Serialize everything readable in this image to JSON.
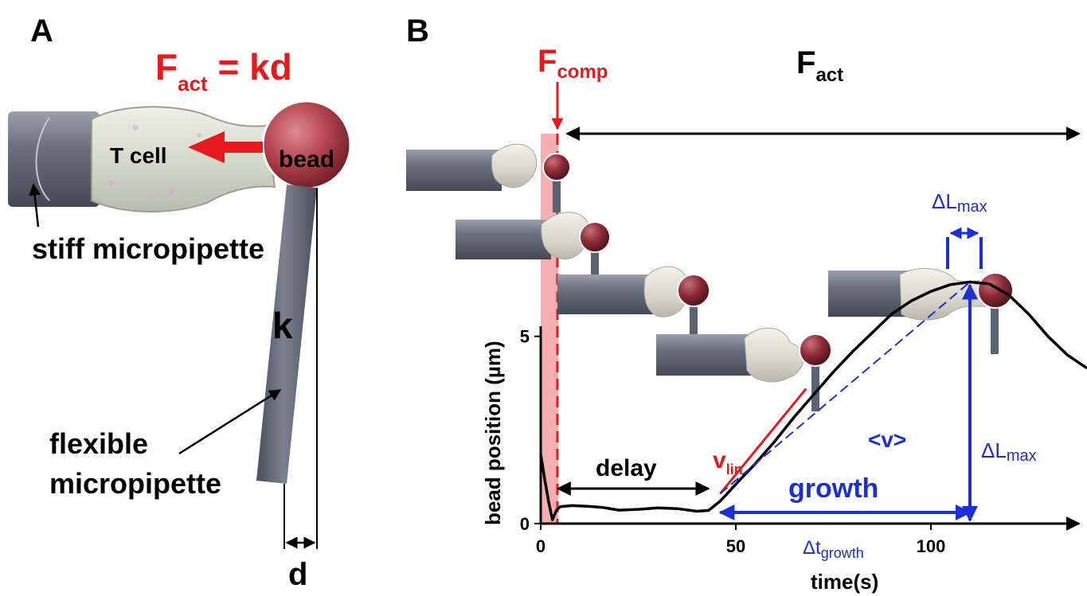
{
  "panel_a": {
    "letter": "A",
    "equation": {
      "main": "F",
      "sub": "act",
      "rest": " = kd"
    },
    "cell_label": "T cell",
    "bead_label": "bead",
    "stiff_label": "stiff micropipette",
    "k_label": "k",
    "flexible_label_line1": "flexible",
    "flexible_label_line2": "micropipette",
    "d_label": "d"
  },
  "panel_b": {
    "letter": "B",
    "f_comp": {
      "main": "F",
      "sub": "comp"
    },
    "f_act": {
      "main": "F",
      "sub": "act"
    },
    "delay_label": "delay",
    "growth_label": "growth",
    "vlin": {
      "main": "v",
      "sub": "lin"
    },
    "vavg_label": "<v>",
    "dtgrowth": {
      "main": "Δt",
      "sub": "growth"
    },
    "dlmax_top": {
      "main": "ΔL",
      "sub": "max"
    },
    "dlmax_right": {
      "main": "ΔL",
      "sub": "max"
    }
  },
  "colors": {
    "red": "#e8191c",
    "blue": "#1b2fd6",
    "pipette": "#5d6270",
    "bead": "#a33a44"
  },
  "chart_data": {
    "type": "line",
    "xlabel": "time(s)",
    "ylabel": "bead position (µm)",
    "xticks": [
      0,
      50,
      100
    ],
    "yticks": [
      0,
      5
    ],
    "xtick_labels": [
      "0",
      "50",
      "100"
    ],
    "ytick_labels": [
      "0",
      "5"
    ],
    "xlim": [
      0,
      140
    ],
    "ylim": [
      0,
      7.5
    ],
    "series": [
      {
        "x": [
          0,
          1,
          2,
          3,
          4,
          5,
          8,
          12,
          16,
          20,
          25,
          30,
          35,
          40,
          43,
          46,
          50,
          55,
          60,
          65,
          70,
          75,
          80,
          85,
          90,
          95,
          100,
          105,
          110,
          115,
          120,
          125,
          130,
          135,
          140
        ],
        "y": [
          1.85,
          1.2,
          0.6,
          0.1,
          0.35,
          0.45,
          0.48,
          0.46,
          0.43,
          0.36,
          0.38,
          0.42,
          0.4,
          0.33,
          0.35,
          0.6,
          1.05,
          1.6,
          2.2,
          2.85,
          3.45,
          4.05,
          4.6,
          5.1,
          5.6,
          5.95,
          6.2,
          6.38,
          6.45,
          6.4,
          6.1,
          5.6,
          5.0,
          4.5,
          4.15
        ]
      }
    ],
    "annotations": {
      "delay_range": [
        4,
        43
      ],
      "growth_range": [
        46,
        110
      ],
      "delta_l_max": 6.45,
      "vlin_line": [
        [
          46,
          0.8
        ],
        [
          68,
          3.6
        ]
      ],
      "mean_v_line": [
        [
          46,
          0.8
        ],
        [
          110,
          6.45
        ]
      ]
    }
  }
}
